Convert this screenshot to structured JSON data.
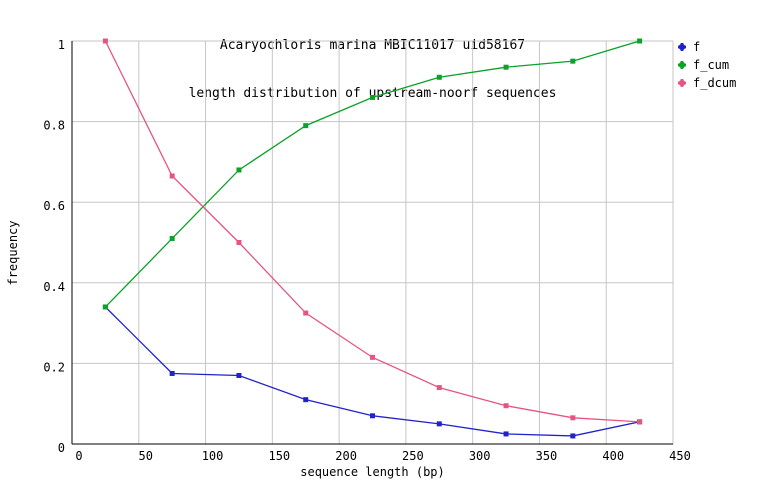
{
  "title": "Acaryochloris marina MBIC11017 uid58167",
  "subtitle": "length distribution of upstream-noorf sequences",
  "colors": {
    "series_f": "#2222cc",
    "series_f_cum": "#0aa228",
    "series_f_dcum": "#e75480",
    "grid": "#c6c6c6",
    "axis": "#000000",
    "background": "#ffffff"
  },
  "legend": {
    "items": [
      {
        "label": "f",
        "color": "#2222cc"
      },
      {
        "label": "f_cum",
        "color": "#0aa228"
      },
      {
        "label": "f_dcum",
        "color": "#e75480"
      }
    ]
  },
  "chart_data": {
    "type": "line",
    "title": "Acaryochloris marina MBIC11017 uid58167",
    "subtitle": "length distribution of upstream-noorf sequences",
    "xlabel": "sequence length (bp)",
    "ylabel": "frequency",
    "x": [
      25,
      75,
      125,
      175,
      225,
      275,
      325,
      375,
      425
    ],
    "series": [
      {
        "name": "f",
        "color": "#2222cc",
        "values": [
          0.34,
          0.175,
          0.17,
          0.11,
          0.07,
          0.05,
          0.025,
          0.02,
          0.055
        ]
      },
      {
        "name": "f_cum",
        "color": "#0aa228",
        "values": [
          0.34,
          0.51,
          0.68,
          0.79,
          0.86,
          0.91,
          0.935,
          0.95,
          1.0
        ]
      },
      {
        "name": "f_dcum",
        "color": "#e75480",
        "values": [
          1.0,
          0.665,
          0.5,
          0.325,
          0.215,
          0.14,
          0.095,
          0.065,
          0.055
        ]
      }
    ],
    "xlim": [
      0,
      450
    ],
    "ylim": [
      0,
      1
    ],
    "x_ticks": [
      0,
      50,
      100,
      150,
      200,
      250,
      300,
      350,
      400,
      450
    ],
    "y_ticks": [
      0,
      0.2,
      0.4,
      0.6,
      0.8,
      1
    ],
    "y_tick_labels": [
      "0",
      "0.2",
      "0.4",
      "0.6",
      "0.8",
      "1"
    ],
    "grid": true,
    "legend_position": "outside-top-right",
    "marker": "square"
  }
}
